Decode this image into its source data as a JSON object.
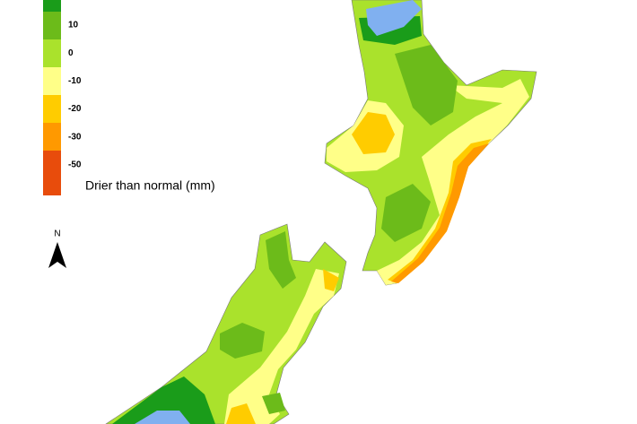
{
  "legend": {
    "swatches": [
      "#1a9c1a",
      "#6cbb1a",
      "#aae22c",
      "#ffff88",
      "#ffcc00",
      "#ff9900",
      "#e84c0c"
    ],
    "labels": [
      "10",
      "0",
      "-10",
      "-20",
      "-30",
      "-50"
    ],
    "caption": "Drier than normal (mm)"
  },
  "north_arrow": "N"
}
